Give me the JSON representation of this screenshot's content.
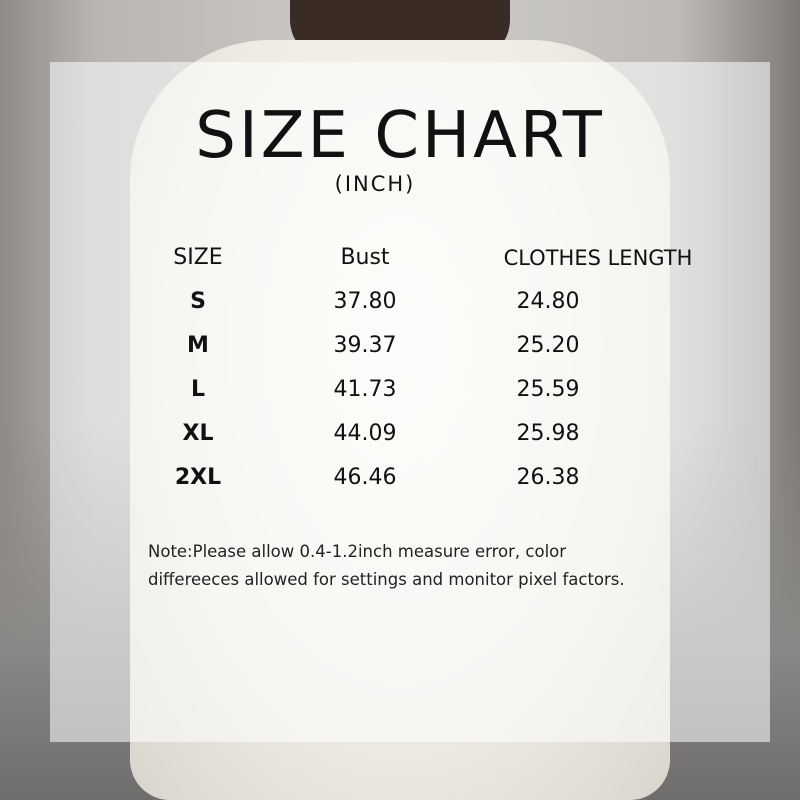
{
  "title": "SIZE CHART",
  "unit": "(INCH)",
  "table": {
    "headers": [
      "SIZE",
      "Bust",
      "CLOTHES LENGTH"
    ],
    "rows": [
      [
        "S",
        "37.80",
        "24.80"
      ],
      [
        "M",
        "39.37",
        "25.20"
      ],
      [
        "L",
        "41.73",
        "25.59"
      ],
      [
        "XL",
        "44.09",
        "25.98"
      ],
      [
        "2XL",
        "46.46",
        "26.38"
      ]
    ]
  },
  "note": [
    "Note:Please allow 0.4-1.2inch measure error, color",
    "differeeces allowed for settings and monitor pixel factors."
  ]
}
